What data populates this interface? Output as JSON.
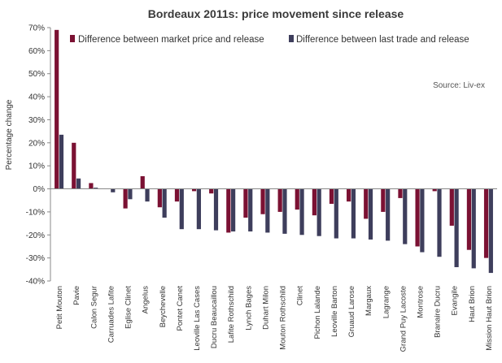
{
  "chart_data": {
    "type": "bar",
    "title": "Bordeaux 2011s: price movement since release",
    "ylabel": "Percentage change",
    "xlabel": "",
    "ylim": [
      -40,
      70
    ],
    "yticks": [
      70,
      60,
      50,
      40,
      30,
      20,
      10,
      0,
      -10,
      -20,
      -30,
      -40
    ],
    "tick_suffix": "%",
    "source": "Source: Liv-ex",
    "legend_position": "top",
    "grid": false,
    "categories": [
      "Petit Mouton",
      "Pavie",
      "Calon Segur",
      "Carruades Lafite",
      "Eglise Clinet",
      "Angelus",
      "Beychevelle",
      "Pontet Canet",
      "Leoville Las Cases",
      "Ducru Beaucaillou",
      "Lafite Rothschild",
      "Lynch Bages",
      "Duhart Milon",
      "Mouton Rothschild",
      "Clinet",
      "Pichon Lalande",
      "Leoville Barton",
      "Gruaud Larose",
      "Margaux",
      "Lagrange",
      "Grand Puy Lacoste",
      "Montrose",
      "Branaire Ducru",
      "Evangile",
      "Haut Brion",
      "Mission Haut Brion"
    ],
    "series": [
      {
        "name": "Difference between market price and release",
        "color": "#7b1133",
        "values": [
          69,
          20,
          2.5,
          0,
          -8.5,
          5.5,
          -8,
          -5.5,
          -1,
          -2,
          -19,
          -12.5,
          -11,
          -10,
          -9,
          -11.5,
          -6.5,
          -5.5,
          -13,
          -10,
          -4,
          -25,
          -1,
          -16,
          -26.5,
          -30
        ]
      },
      {
        "name": "Difference between last trade and release",
        "color": "#3e3e5c",
        "values": [
          23.5,
          4.5,
          0.5,
          -1.5,
          -4.5,
          -5.5,
          -12.5,
          -17.5,
          -17.5,
          -18,
          -18.5,
          -18.5,
          -19,
          -19.5,
          -20,
          -20.5,
          -21.5,
          -21.5,
          -22,
          -22.5,
          -24,
          -27.5,
          -29.5,
          -34,
          -34.5,
          -36.5
        ]
      }
    ]
  }
}
